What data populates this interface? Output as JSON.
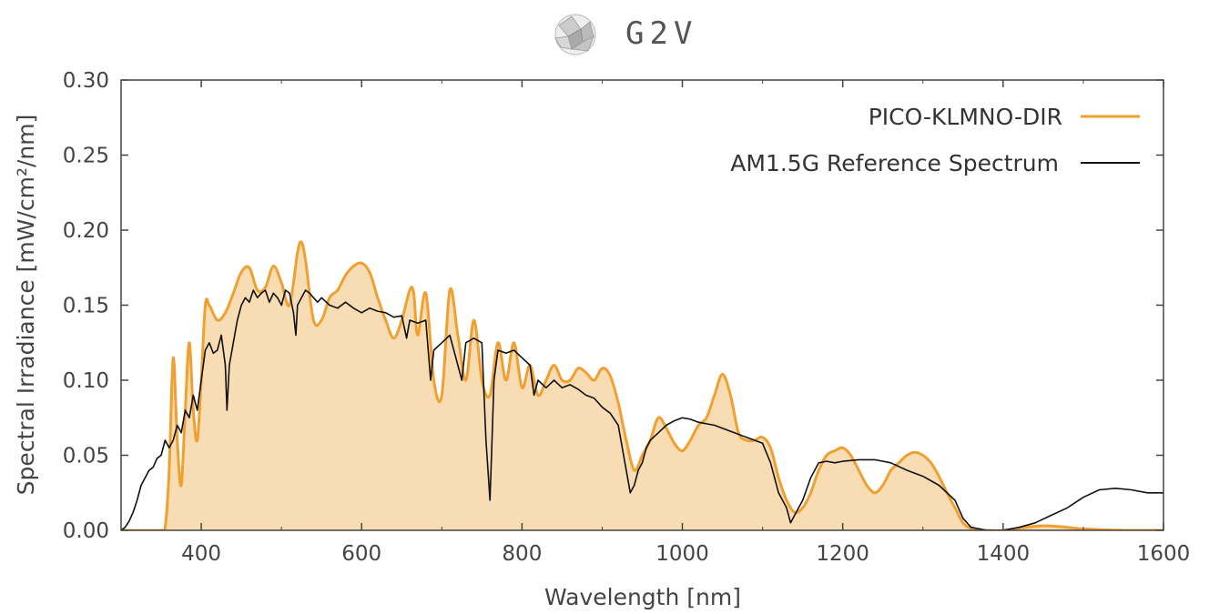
{
  "logo": {
    "text": "G2V",
    "icon": "faceted-sphere-logo-icon"
  },
  "chart_data": {
    "type": "area",
    "title": "",
    "xlabel": "Wavelength [nm]",
    "ylabel": "Spectral Irradiance [mW/cm²/nm]",
    "xlim": [
      300,
      1600
    ],
    "ylim": [
      0,
      0.3
    ],
    "xticks": [
      400,
      600,
      800,
      1000,
      1200,
      1400,
      1600
    ],
    "yticks": [
      0.0,
      0.05,
      0.1,
      0.15,
      0.2,
      0.25,
      0.3
    ],
    "xtick_labels": [
      "400",
      "600",
      "800",
      "1000",
      "1200",
      "1400",
      "1600"
    ],
    "ytick_labels": [
      "0.00",
      "0.05",
      "0.10",
      "0.15",
      "0.20",
      "0.25",
      "0.30"
    ],
    "grid": false,
    "legend": {
      "position": "top-right"
    },
    "series": [
      {
        "name": "PICO-KLMNO-DIR",
        "color": "#f0a030",
        "fill": "#f8dcb4",
        "style": "smooth-filled",
        "x": [
          300,
          350,
          355,
          360,
          365,
          370,
          375,
          380,
          385,
          390,
          395,
          400,
          405,
          410,
          420,
          430,
          440,
          450,
          460,
          470,
          480,
          490,
          500,
          510,
          520,
          525,
          530,
          540,
          550,
          560,
          570,
          580,
          590,
          600,
          610,
          620,
          630,
          640,
          650,
          660,
          665,
          670,
          680,
          690,
          700,
          710,
          720,
          730,
          740,
          750,
          760,
          770,
          780,
          790,
          800,
          810,
          820,
          830,
          840,
          850,
          860,
          870,
          880,
          890,
          900,
          910,
          920,
          930,
          940,
          950,
          960,
          970,
          980,
          990,
          1000,
          1010,
          1020,
          1030,
          1040,
          1050,
          1060,
          1070,
          1080,
          1090,
          1100,
          1110,
          1120,
          1130,
          1140,
          1150,
          1160,
          1170,
          1180,
          1190,
          1200,
          1210,
          1220,
          1230,
          1240,
          1250,
          1260,
          1270,
          1280,
          1290,
          1300,
          1310,
          1320,
          1330,
          1340,
          1350,
          1360,
          1370,
          1380,
          1400,
          1450,
          1500,
          1550,
          1600
        ],
        "y": [
          0,
          0,
          0.002,
          0.04,
          0.115,
          0.06,
          0.03,
          0.08,
          0.125,
          0.08,
          0.06,
          0.1,
          0.15,
          0.15,
          0.14,
          0.145,
          0.158,
          0.172,
          0.175,
          0.16,
          0.162,
          0.176,
          0.165,
          0.15,
          0.185,
          0.192,
          0.18,
          0.14,
          0.14,
          0.155,
          0.16,
          0.17,
          0.176,
          0.178,
          0.172,
          0.155,
          0.14,
          0.128,
          0.14,
          0.16,
          0.158,
          0.13,
          0.158,
          0.1,
          0.09,
          0.16,
          0.13,
          0.1,
          0.14,
          0.1,
          0.09,
          0.125,
          0.1,
          0.125,
          0.095,
          0.11,
          0.09,
          0.1,
          0.11,
          0.1,
          0.1,
          0.108,
          0.105,
          0.1,
          0.108,
          0.103,
          0.085,
          0.06,
          0.04,
          0.05,
          0.06,
          0.075,
          0.068,
          0.058,
          0.053,
          0.06,
          0.07,
          0.075,
          0.09,
          0.104,
          0.09,
          0.065,
          0.06,
          0.06,
          0.062,
          0.055,
          0.035,
          0.02,
          0.012,
          0.015,
          0.025,
          0.04,
          0.05,
          0.053,
          0.055,
          0.05,
          0.04,
          0.03,
          0.025,
          0.03,
          0.04,
          0.045,
          0.05,
          0.052,
          0.05,
          0.045,
          0.036,
          0.025,
          0.015,
          0.005,
          0.001,
          0,
          0,
          0,
          0.003,
          0.001,
          0,
          0
        ]
      },
      {
        "name": "AM1.5G Reference Spectrum",
        "color": "#111111",
        "style": "line",
        "x": [
          300,
          305,
          310,
          315,
          320,
          325,
          330,
          335,
          340,
          345,
          350,
          355,
          360,
          365,
          370,
          375,
          380,
          385,
          390,
          395,
          400,
          405,
          410,
          415,
          420,
          425,
          430,
          432,
          435,
          440,
          445,
          450,
          455,
          460,
          465,
          470,
          475,
          480,
          485,
          490,
          495,
          500,
          505,
          510,
          515,
          518,
          520,
          525,
          530,
          535,
          540,
          545,
          550,
          560,
          570,
          580,
          590,
          600,
          610,
          620,
          630,
          640,
          650,
          656,
          660,
          670,
          680,
          686,
          690,
          700,
          710,
          720,
          725,
          730,
          740,
          750,
          755,
          760,
          762,
          765,
          770,
          780,
          790,
          800,
          810,
          815,
          820,
          830,
          840,
          850,
          860,
          870,
          880,
          890,
          900,
          910,
          920,
          925,
          930,
          935,
          940,
          945,
          950,
          955,
          960,
          970,
          980,
          990,
          1000,
          1010,
          1020,
          1040,
          1060,
          1080,
          1100,
          1110,
          1120,
          1130,
          1135,
          1140,
          1150,
          1160,
          1170,
          1180,
          1190,
          1200,
          1220,
          1240,
          1260,
          1280,
          1300,
          1320,
          1340,
          1350,
          1360,
          1380,
          1400,
          1420,
          1440,
          1460,
          1480,
          1500,
          1520,
          1540,
          1560,
          1580,
          1600
        ],
        "y": [
          0,
          0.002,
          0.006,
          0.012,
          0.02,
          0.03,
          0.035,
          0.04,
          0.042,
          0.048,
          0.05,
          0.06,
          0.055,
          0.06,
          0.07,
          0.065,
          0.08,
          0.075,
          0.09,
          0.08,
          0.1,
          0.12,
          0.125,
          0.118,
          0.12,
          0.13,
          0.11,
          0.08,
          0.11,
          0.125,
          0.14,
          0.15,
          0.155,
          0.152,
          0.16,
          0.155,
          0.158,
          0.16,
          0.152,
          0.158,
          0.155,
          0.15,
          0.16,
          0.158,
          0.145,
          0.13,
          0.15,
          0.155,
          0.16,
          0.158,
          0.155,
          0.152,
          0.155,
          0.15,
          0.148,
          0.152,
          0.148,
          0.145,
          0.148,
          0.146,
          0.145,
          0.142,
          0.143,
          0.128,
          0.14,
          0.138,
          0.14,
          0.1,
          0.12,
          0.125,
          0.13,
          0.11,
          0.1,
          0.125,
          0.128,
          0.125,
          0.06,
          0.02,
          0.05,
          0.1,
          0.12,
          0.118,
          0.12,
          0.115,
          0.11,
          0.09,
          0.1,
          0.095,
          0.1,
          0.095,
          0.097,
          0.094,
          0.09,
          0.088,
          0.082,
          0.078,
          0.07,
          0.055,
          0.04,
          0.025,
          0.03,
          0.04,
          0.045,
          0.055,
          0.06,
          0.065,
          0.07,
          0.073,
          0.075,
          0.074,
          0.072,
          0.07,
          0.066,
          0.062,
          0.058,
          0.045,
          0.025,
          0.015,
          0.005,
          0.01,
          0.02,
          0.035,
          0.045,
          0.046,
          0.045,
          0.046,
          0.047,
          0.047,
          0.045,
          0.04,
          0.036,
          0.03,
          0.02,
          0.008,
          0.002,
          0,
          0,
          0.002,
          0.005,
          0.01,
          0.015,
          0.022,
          0.027,
          0.028,
          0.027,
          0.025,
          0.025
        ]
      }
    ]
  }
}
